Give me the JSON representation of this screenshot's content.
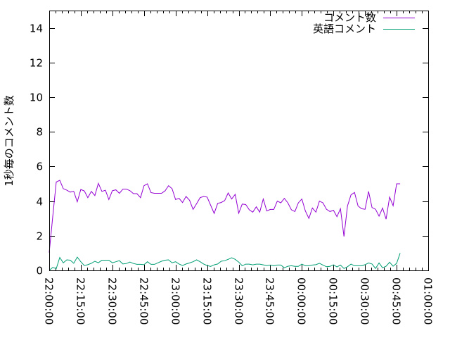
{
  "chart_data": {
    "type": "line",
    "title": "",
    "xlabel": "",
    "ylabel": "1秒毎のコメント数",
    "xlim": [
      "22:00:00",
      "01:00:00"
    ],
    "ylim": [
      0,
      15
    ],
    "grid": false,
    "legend_position": "top-right",
    "x_ticks": [
      "22:00:00",
      "22:15:00",
      "22:30:00",
      "22:45:00",
      "23:00:00",
      "23:15:00",
      "23:30:00",
      "23:45:00",
      "00:00:00",
      "00:15:00",
      "00:30:00",
      "00:45:00",
      "01:00:00"
    ],
    "y_ticks": [
      "0",
      "2",
      "4",
      "6",
      "8",
      "10",
      "12",
      "14"
    ],
    "x": [
      "22:00:00",
      "22:01:40",
      "22:03:20",
      "22:05:00",
      "22:06:40",
      "22:08:20",
      "22:10:00",
      "22:11:40",
      "22:13:20",
      "22:15:00",
      "22:16:40",
      "22:18:20",
      "22:20:00",
      "22:21:40",
      "22:23:20",
      "22:25:00",
      "22:26:40",
      "22:28:20",
      "22:30:00",
      "22:31:40",
      "22:33:20",
      "22:35:00",
      "22:36:40",
      "22:38:20",
      "22:40:00",
      "22:41:40",
      "22:43:20",
      "22:45:00",
      "22:46:40",
      "22:48:20",
      "22:50:00",
      "22:51:40",
      "22:53:20",
      "22:55:00",
      "22:56:40",
      "22:58:20",
      "23:00:00",
      "23:01:40",
      "23:03:20",
      "23:05:00",
      "23:06:40",
      "23:08:20",
      "23:10:00",
      "23:11:40",
      "23:13:20",
      "23:15:00",
      "23:16:40",
      "23:18:20",
      "23:20:00",
      "23:21:40",
      "23:23:20",
      "23:25:00",
      "23:26:40",
      "23:28:20",
      "23:30:00",
      "23:31:40",
      "23:33:20",
      "23:35:00",
      "23:36:40",
      "23:38:20",
      "23:40:00",
      "23:41:40",
      "23:43:20",
      "23:45:00",
      "23:46:40",
      "23:48:20",
      "23:50:00",
      "23:51:40",
      "23:53:20",
      "23:55:00",
      "23:56:40",
      "23:58:20",
      "00:00:00",
      "00:01:40",
      "00:03:20",
      "00:05:00",
      "00:06:40",
      "00:08:20",
      "00:10:00",
      "00:11:40",
      "00:13:20",
      "00:15:00",
      "00:16:40",
      "00:18:20",
      "00:20:00",
      "00:21:40",
      "00:23:20",
      "00:25:00",
      "00:26:40",
      "00:28:20",
      "00:30:00",
      "00:31:40",
      "00:33:20",
      "00:35:00",
      "00:36:40",
      "00:38:20",
      "00:40:00",
      "00:41:40",
      "00:43:20",
      "00:45:00",
      "00:46:40"
    ],
    "series": [
      {
        "name": "コメント数",
        "color": "#9400d3",
        "values": [
          1.03,
          3.1,
          5.1,
          5.2,
          4.72,
          4.63,
          4.52,
          4.56,
          3.96,
          4.67,
          4.59,
          4.2,
          4.56,
          4.32,
          5.03,
          4.56,
          4.63,
          4.09,
          4.6,
          4.65,
          4.45,
          4.69,
          4.69,
          4.6,
          4.43,
          4.43,
          4.2,
          4.89,
          5.0,
          4.49,
          4.45,
          4.45,
          4.45,
          4.59,
          4.89,
          4.72,
          4.09,
          4.16,
          3.92,
          4.27,
          4.05,
          3.52,
          3.85,
          4.2,
          4.27,
          4.23,
          3.76,
          3.29,
          3.87,
          3.92,
          4.03,
          4.47,
          4.12,
          4.39,
          3.3,
          3.83,
          3.8,
          3.5,
          3.36,
          3.67,
          3.36,
          4.12,
          3.43,
          3.52,
          3.52,
          4.0,
          3.9,
          4.16,
          3.9,
          3.5,
          3.4,
          3.9,
          4.12,
          3.43,
          3.0,
          3.6,
          3.36,
          4.0,
          3.9,
          3.53,
          3.4,
          3.47,
          3.1,
          3.56,
          1.96,
          3.72,
          4.36,
          4.5,
          3.72,
          3.56,
          3.53,
          4.56,
          3.63,
          3.53,
          3.13,
          3.6,
          2.96,
          4.23,
          3.73,
          5.0,
          5.0
        ]
      },
      {
        "name": "英語コメント",
        "color": "#009e73",
        "values": [
          0,
          0.17,
          0.1,
          0.75,
          0.44,
          0.61,
          0.59,
          0.41,
          0.77,
          0.5,
          0.28,
          0.33,
          0.41,
          0.53,
          0.44,
          0.59,
          0.59,
          0.59,
          0.44,
          0.5,
          0.56,
          0.37,
          0.4,
          0.48,
          0.4,
          0.35,
          0.35,
          0.33,
          0.5,
          0.35,
          0.35,
          0.44,
          0.53,
          0.59,
          0.61,
          0.44,
          0.5,
          0.37,
          0.28,
          0.37,
          0.43,
          0.5,
          0.61,
          0.5,
          0.37,
          0.28,
          0.23,
          0.32,
          0.37,
          0.53,
          0.56,
          0.64,
          0.73,
          0.64,
          0.48,
          0.27,
          0.36,
          0.36,
          0.32,
          0.36,
          0.36,
          0.32,
          0.28,
          0.31,
          0.27,
          0.31,
          0.31,
          0.15,
          0.24,
          0.27,
          0.23,
          0.23,
          0.36,
          0.27,
          0.27,
          0.31,
          0.33,
          0.41,
          0.31,
          0.21,
          0.23,
          0.32,
          0.2,
          0.31,
          0.11,
          0.21,
          0.36,
          0.27,
          0.27,
          0.27,
          0.33,
          0.43,
          0.37,
          0.11,
          0.43,
          0.15,
          0.24,
          0.47,
          0.24,
          0.41,
          1.0
        ]
      }
    ]
  }
}
